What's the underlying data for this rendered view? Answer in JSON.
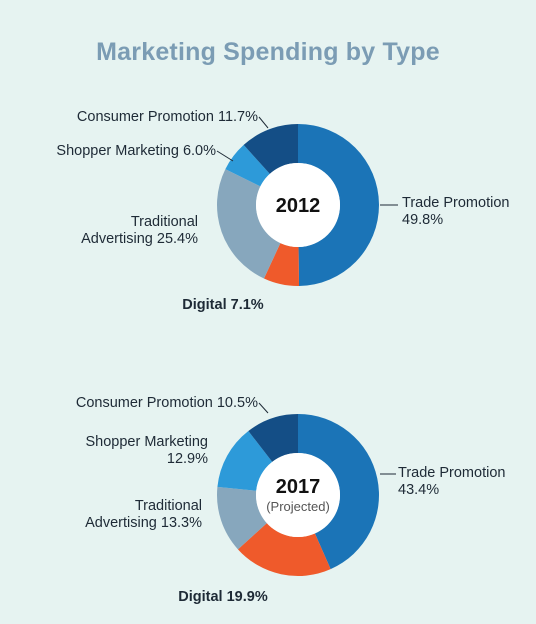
{
  "page": {
    "title": "Marketing Spending by Type"
  },
  "colors": {
    "background": "#e6f3f1",
    "title": "#7b9cb4",
    "digital_label": "#ee5a2c",
    "text": "#1e2a36"
  },
  "chart_data": [
    {
      "type": "pie",
      "center_label": "2012",
      "center_sublabel": "",
      "slices": [
        {
          "name": "Trade Promotion",
          "value": 49.8,
          "label_lines": [
            "Trade Promotion",
            "49.8%"
          ],
          "color": "#1b74b7",
          "label_side": "right"
        },
        {
          "name": "Digital",
          "value": 7.1,
          "label_lines": [
            "Digital 7.1%"
          ],
          "color": "#ef5a2b",
          "label_side": "bottom"
        },
        {
          "name": "Traditional Advertising",
          "value": 25.4,
          "label_lines": [
            "Traditional",
            "Advertising 25.4%"
          ],
          "color": "#87a7bd",
          "label_side": "left"
        },
        {
          "name": "Shopper Marketing",
          "value": 6.0,
          "label_lines": [
            "Shopper Marketing 6.0%"
          ],
          "color": "#2d9ad9",
          "label_side": "left"
        },
        {
          "name": "Consumer Promotion",
          "value": 11.7,
          "label_lines": [
            "Consumer Promotion 11.7%"
          ],
          "color": "#144e86",
          "label_side": "left"
        }
      ]
    },
    {
      "type": "pie",
      "center_label": "2017",
      "center_sublabel": "(Projected)",
      "slices": [
        {
          "name": "Trade Promotion",
          "value": 43.4,
          "label_lines": [
            "Trade Promotion",
            "43.4%"
          ],
          "color": "#1b74b7",
          "label_side": "right"
        },
        {
          "name": "Digital",
          "value": 19.9,
          "label_lines": [
            "Digital 19.9%"
          ],
          "color": "#ef5a2b",
          "label_side": "bottom"
        },
        {
          "name": "Traditional Advertising",
          "value": 13.3,
          "label_lines": [
            "Traditional",
            "Advertising 13.3%"
          ],
          "color": "#87a7bd",
          "label_side": "left"
        },
        {
          "name": "Shopper Marketing",
          "value": 12.9,
          "label_lines": [
            "Shopper Marketing",
            "12.9%"
          ],
          "color": "#2d9ad9",
          "label_side": "left"
        },
        {
          "name": "Consumer Promotion",
          "value": 10.5,
          "label_lines": [
            "Consumer Promotion 10.5%"
          ],
          "color": "#144e86",
          "label_side": "left"
        }
      ]
    }
  ]
}
